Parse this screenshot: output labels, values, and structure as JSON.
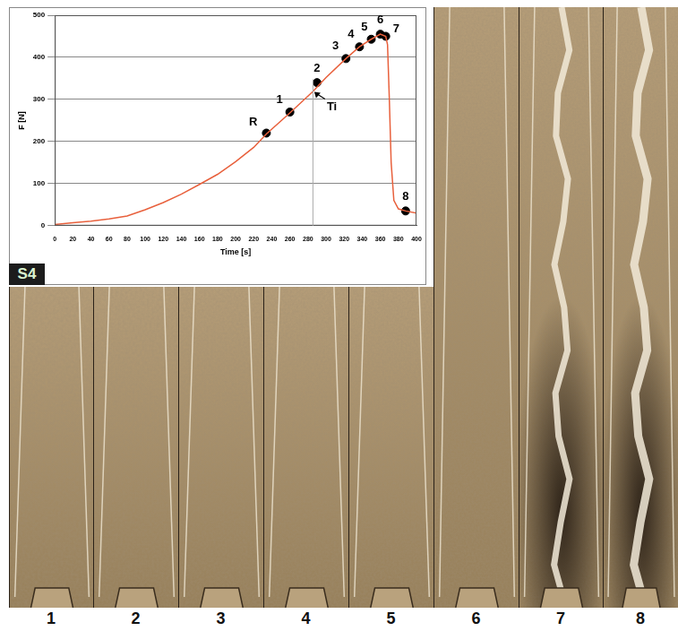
{
  "chart_data": {
    "type": "line",
    "x_label": "Time [s]",
    "y_label": "F [N]",
    "x": [
      0,
      20,
      40,
      60,
      80,
      100,
      120,
      140,
      160,
      180,
      200,
      220,
      234,
      260,
      285,
      300,
      322,
      337,
      350,
      360,
      366,
      368,
      370,
      372,
      375,
      380,
      388,
      400
    ],
    "values": [
      3,
      7,
      11,
      16,
      23,
      38,
      55,
      75,
      98,
      122,
      152,
      186,
      218,
      268,
      318,
      352,
      397,
      425,
      443,
      455,
      450,
      430,
      300,
      150,
      60,
      40,
      35,
      30
    ],
    "color": "#e8603c",
    "xlim": [
      0,
      400
    ],
    "xticks": [
      0,
      20,
      40,
      60,
      80,
      100,
      120,
      140,
      160,
      180,
      200,
      220,
      240,
      260,
      280,
      300,
      320,
      340,
      360,
      380,
      400
    ],
    "ylim": [
      0,
      500
    ],
    "yticks": [
      0,
      100,
      200,
      300,
      400,
      500
    ],
    "grid": true,
    "markers": [
      {
        "label": "R",
        "x": 234,
        "y": 220
      },
      {
        "label": "1",
        "x": 260,
        "y": 270
      },
      {
        "label": "2",
        "x": 290,
        "y": 340
      },
      {
        "label": "3",
        "x": 322,
        "y": 397
      },
      {
        "label": "4",
        "x": 337,
        "y": 425
      },
      {
        "label": "5",
        "x": 350,
        "y": 443
      },
      {
        "label": "6",
        "x": 360,
        "y": 455
      },
      {
        "label": "7",
        "x": 366,
        "y": 450
      },
      {
        "label": "8",
        "x": 388,
        "y": 35
      }
    ],
    "annotations": [
      {
        "text": "Ti",
        "x": 285,
        "y": 322
      }
    ]
  },
  "figure": {
    "panel_label": "S4",
    "image_labels": [
      "1",
      "2",
      "3",
      "4",
      "5",
      "6",
      "7",
      "8"
    ]
  }
}
